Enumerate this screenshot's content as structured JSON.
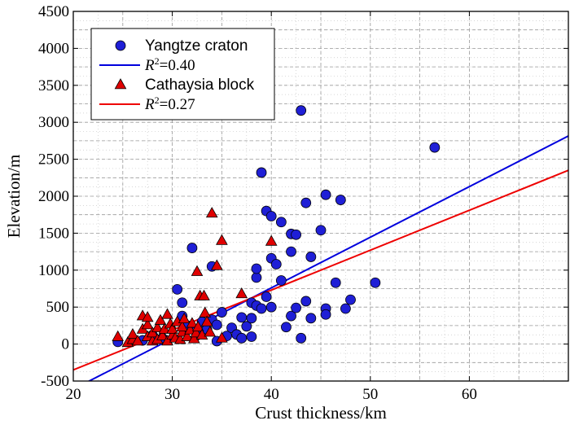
{
  "chart_data": {
    "type": "scatter",
    "title": "",
    "xlabel": "Crust thickness/km",
    "ylabel": "Elevation/m",
    "xlim": [
      20,
      70
    ],
    "ylim": [
      -500,
      4500
    ],
    "xticks": [
      20,
      30,
      40,
      50,
      60
    ],
    "yticks": [
      -500,
      0,
      500,
      1000,
      1500,
      2000,
      2500,
      3000,
      3500,
      4000,
      4500
    ],
    "grid": true,
    "legend_position": "top-left",
    "series": [
      {
        "name": "Yangtze craton",
        "marker": "circle",
        "color": "#1f1fd6",
        "points": [
          [
            24.5,
            30
          ],
          [
            27,
            50
          ],
          [
            28,
            120
          ],
          [
            29,
            80
          ],
          [
            30.5,
            740
          ],
          [
            31,
            560
          ],
          [
            31,
            380
          ],
          [
            31.5,
            250
          ],
          [
            32,
            1300
          ],
          [
            32.5,
            120
          ],
          [
            33,
            300
          ],
          [
            33.5,
            200
          ],
          [
            34,
            1050
          ],
          [
            34,
            330
          ],
          [
            34.5,
            40
          ],
          [
            34.5,
            260
          ],
          [
            35,
            430
          ],
          [
            35.5,
            110
          ],
          [
            36,
            220
          ],
          [
            36.5,
            130
          ],
          [
            37,
            360
          ],
          [
            37,
            80
          ],
          [
            37.5,
            240
          ],
          [
            38,
            560
          ],
          [
            38,
            350
          ],
          [
            38,
            100
          ],
          [
            38.5,
            900
          ],
          [
            38.5,
            1020
          ],
          [
            38.5,
            520
          ],
          [
            39,
            480
          ],
          [
            39,
            2320
          ],
          [
            39.5,
            1800
          ],
          [
            39.5,
            640
          ],
          [
            40,
            1730
          ],
          [
            40,
            1160
          ],
          [
            40,
            500
          ],
          [
            40.5,
            1080
          ],
          [
            41,
            1650
          ],
          [
            41,
            860
          ],
          [
            41.5,
            230
          ],
          [
            42,
            1490
          ],
          [
            42,
            1250
          ],
          [
            42,
            380
          ],
          [
            42.5,
            1480
          ],
          [
            42.5,
            490
          ],
          [
            43,
            3160
          ],
          [
            43,
            80
          ],
          [
            43.5,
            1910
          ],
          [
            43.5,
            580
          ],
          [
            44,
            1180
          ],
          [
            44,
            350
          ],
          [
            45,
            1540
          ],
          [
            45.5,
            2020
          ],
          [
            45.5,
            480
          ],
          [
            45.5,
            400
          ],
          [
            46.5,
            830
          ],
          [
            47,
            1950
          ],
          [
            47.5,
            480
          ],
          [
            48,
            600
          ],
          [
            50.5,
            830
          ],
          [
            56.5,
            2660
          ]
        ]
      },
      {
        "name": "Cathaysia block",
        "marker": "triangle",
        "color": "#e00000",
        "points": [
          [
            24.5,
            100
          ],
          [
            25.5,
            20
          ],
          [
            26,
            60
          ],
          [
            26,
            130
          ],
          [
            26.5,
            40
          ],
          [
            27,
            200
          ],
          [
            27,
            380
          ],
          [
            27.5,
            100
          ],
          [
            27.5,
            260
          ],
          [
            27.5,
            360
          ],
          [
            28,
            40
          ],
          [
            28,
            150
          ],
          [
            28.5,
            220
          ],
          [
            28.5,
            60
          ],
          [
            28.8,
            320
          ],
          [
            29,
            110
          ],
          [
            29.2,
            200
          ],
          [
            29.5,
            400
          ],
          [
            29.5,
            40
          ],
          [
            29.8,
            270
          ],
          [
            30,
            120
          ],
          [
            30,
            200
          ],
          [
            30.3,
            80
          ],
          [
            30.5,
            300
          ],
          [
            30.8,
            60
          ],
          [
            31,
            160
          ],
          [
            31,
            230
          ],
          [
            31.2,
            340
          ],
          [
            31.5,
            100
          ],
          [
            31.8,
            190
          ],
          [
            32,
            280
          ],
          [
            32.2,
            70
          ],
          [
            32.4,
            150
          ],
          [
            32.5,
            980
          ],
          [
            32.6,
            230
          ],
          [
            32.8,
            650
          ],
          [
            33,
            120
          ],
          [
            33.2,
            650
          ],
          [
            33.3,
            420
          ],
          [
            33.5,
            300
          ],
          [
            33.8,
            160
          ],
          [
            34,
            1770
          ],
          [
            34.5,
            1060
          ],
          [
            35,
            1400
          ],
          [
            35,
            80
          ],
          [
            37,
            680
          ],
          [
            40,
            1390
          ]
        ]
      }
    ],
    "fits": [
      {
        "name": "R2=0.40",
        "r2": "0.40",
        "color": "#0000dd",
        "slope": 68.5,
        "intercept": -1980,
        "x": [
          20,
          70
        ]
      },
      {
        "name": "R2=0.27",
        "r2": "0.27",
        "color": "#ee0000",
        "slope": 54.0,
        "intercept": -1430,
        "x": [
          20,
          70
        ]
      }
    ]
  },
  "legend": {
    "entries": [
      {
        "label": "Yangtze craton",
        "kind": "marker",
        "ref": "series0"
      },
      {
        "label_prefix": "R",
        "label_sup": "2",
        "label_suffix": "=0.40",
        "kind": "line",
        "ref": "fit0"
      },
      {
        "label": "Cathaysia block",
        "kind": "marker",
        "ref": "series1"
      },
      {
        "label_prefix": "R",
        "label_sup": "2",
        "label_suffix": "=0.27",
        "kind": "line",
        "ref": "fit1"
      }
    ]
  }
}
